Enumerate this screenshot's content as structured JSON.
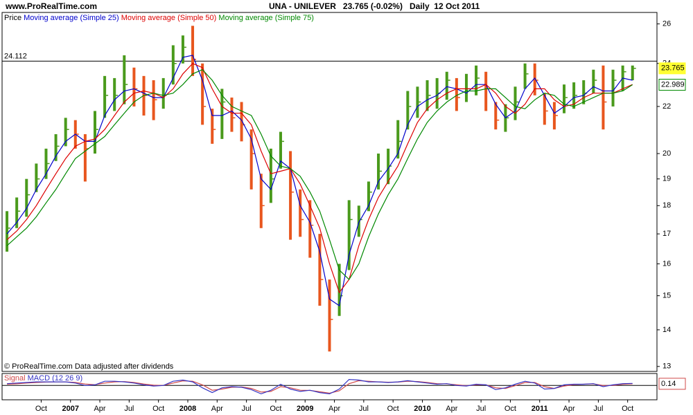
{
  "header": {
    "site": "www.ProRealTime.com",
    "title": "UNA - UNILEVER   23.765 (-0.02%)   Daily  12 Oct 2011"
  },
  "chart_data": [
    {
      "type": "hilo",
      "log": true,
      "ylim": [
        12.87,
        26.61
      ],
      "yticks": [
        13,
        14,
        15,
        16,
        17,
        18,
        19,
        20,
        22,
        24,
        26
      ],
      "hline": 24.112,
      "footnote": "© ProRealTime.com  Data adjusted after dividends",
      "categories": [
        null,
        null,
        null,
        null,
        "Oct",
        null,
        null,
        "2007",
        null,
        null,
        "Apr",
        null,
        null,
        "Jul",
        null,
        null,
        "Oct",
        null,
        null,
        "2008",
        null,
        null,
        "Apr",
        null,
        null,
        "Jul",
        null,
        null,
        "Oct",
        null,
        null,
        "2009",
        null,
        null,
        "Apr",
        null,
        null,
        "Jul",
        null,
        null,
        "Oct",
        null,
        null,
        "2010",
        null,
        null,
        "Apr",
        null,
        null,
        "Jul",
        null,
        null,
        "Oct",
        null,
        null,
        "2011",
        null,
        null,
        "Apr",
        null,
        null,
        "Jul",
        null,
        null,
        "Oct",
        null,
        null
      ],
      "series": [
        {
          "name": "Price",
          "color": "#4a9a1c",
          "down_color": "#e8561e",
          "box_color": "#ffff33",
          "box_filled": true,
          "values": [
            17.2,
            17.8,
            18.4,
            19.0,
            19.6,
            20.3,
            21.0,
            20.8,
            20.2,
            21.0,
            22.5,
            22.5,
            23.0,
            22.8,
            22.5,
            22.3,
            22.5,
            24.0,
            24.8,
            24.2,
            22.0,
            21.0,
            22.2,
            21.5,
            21.2,
            20.0,
            18.0,
            19.0,
            20.5,
            18.5,
            17.5,
            17.3,
            15.5,
            14.3,
            15.0,
            17.5,
            17.5,
            18.5,
            19.3,
            19.5,
            20.5,
            22.0,
            22.2,
            22.5,
            22.6,
            23.2,
            22.4,
            22.8,
            23.3,
            22.8,
            21.4,
            21.5,
            22.2,
            23.5,
            23.2,
            21.8,
            21.6,
            22.4,
            22.5,
            22.6,
            23.2,
            22.2,
            23.2,
            23.6,
            23.765,
            null,
            null
          ],
          "high": [
            17.8,
            18.3,
            19.0,
            19.6,
            20.2,
            20.8,
            21.5,
            21.4,
            20.8,
            21.8,
            23.4,
            23.3,
            24.4,
            23.8,
            23.4,
            23.2,
            23.3,
            24.9,
            25.4,
            25.9,
            24.0,
            21.9,
            22.8,
            22.4,
            22.2,
            21.0,
            19.2,
            20.2,
            20.9,
            20.1,
            18.6,
            18.2,
            17.0,
            15.5,
            16.0,
            18.2,
            18.0,
            18.9,
            20.0,
            20.2,
            21.4,
            22.7,
            22.9,
            23.2,
            23.3,
            23.6,
            23.3,
            23.5,
            23.9,
            23.6,
            22.2,
            22.1,
            22.9,
            24.0,
            24.0,
            22.6,
            22.2,
            23.0,
            23.1,
            23.2,
            23.7,
            23.9,
            23.7,
            23.9,
            23.9,
            null,
            null
          ],
          "low": [
            16.4,
            17.2,
            17.6,
            18.5,
            19.0,
            19.7,
            20.3,
            20.2,
            18.9,
            20.0,
            21.5,
            21.8,
            22.1,
            22.0,
            21.6,
            21.4,
            21.9,
            23.0,
            24.0,
            23.4,
            21.2,
            20.4,
            20.6,
            20.9,
            20.5,
            18.6,
            17.2,
            18.1,
            19.4,
            16.8,
            16.9,
            16.2,
            14.7,
            13.4,
            14.4,
            15.8,
            16.9,
            17.8,
            18.6,
            18.8,
            19.8,
            21.0,
            21.5,
            21.8,
            21.9,
            22.3,
            21.8,
            22.2,
            22.5,
            21.8,
            21.0,
            20.9,
            21.4,
            22.8,
            22.5,
            21.2,
            21.0,
            21.7,
            21.9,
            22.1,
            22.6,
            21.0,
            22.0,
            22.7,
            23.2,
            null,
            null
          ]
        },
        {
          "name": "Moving average (Simple 25)",
          "color": "#0000cc",
          "values": [
            17.0,
            17.4,
            17.9,
            18.6,
            19.2,
            19.9,
            20.5,
            20.8,
            20.5,
            20.5,
            21.6,
            22.3,
            22.7,
            22.8,
            22.6,
            22.4,
            22.4,
            23.3,
            24.3,
            24.4,
            23.2,
            21.6,
            21.6,
            21.8,
            21.4,
            20.6,
            19.0,
            18.6,
            19.7,
            19.4,
            18.0,
            17.4,
            16.4,
            14.9,
            14.7,
            16.3,
            17.4,
            18.0,
            18.9,
            19.4,
            20.0,
            21.2,
            22.0,
            22.3,
            22.5,
            22.9,
            22.8,
            22.6,
            23.0,
            23.0,
            22.1,
            21.5,
            21.8,
            22.8,
            23.3,
            22.5,
            21.7,
            22.0,
            22.4,
            22.5,
            22.9,
            22.7,
            22.7,
            23.3,
            23.2,
            null,
            null
          ]
        },
        {
          "name": "Moving average (Simple 50)",
          "color": "#dd0000",
          "values": [
            16.8,
            17.1,
            17.5,
            18.0,
            18.6,
            19.2,
            19.8,
            20.3,
            20.5,
            20.6,
            21.0,
            21.6,
            22.2,
            22.6,
            22.7,
            22.6,
            22.4,
            22.8,
            23.5,
            24.0,
            23.8,
            22.8,
            22.0,
            21.7,
            21.7,
            21.2,
            20.1,
            19.2,
            19.3,
            19.4,
            18.8,
            18.0,
            17.2,
            16.0,
            15.1,
            15.5,
            16.6,
            17.5,
            18.3,
            18.9,
            19.5,
            20.4,
            21.3,
            21.9,
            22.3,
            22.6,
            22.8,
            22.8,
            22.8,
            23.0,
            22.6,
            22.0,
            21.7,
            22.1,
            22.8,
            22.8,
            22.3,
            22.0,
            22.1,
            22.4,
            22.6,
            22.6,
            22.6,
            22.8,
            23.0,
            null,
            null
          ]
        },
        {
          "name": "Moving average (Simple 75)",
          "color": "#008800",
          "box_color": "#008800",
          "box_filled": false,
          "values": [
            16.6,
            16.9,
            17.2,
            17.6,
            18.1,
            18.6,
            19.2,
            19.8,
            20.1,
            20.4,
            20.7,
            21.2,
            21.7,
            22.2,
            22.5,
            22.6,
            22.5,
            22.6,
            23.0,
            23.5,
            23.7,
            23.2,
            22.5,
            22.0,
            21.8,
            21.6,
            20.8,
            19.9,
            19.5,
            19.4,
            19.1,
            18.5,
            17.8,
            16.8,
            15.8,
            15.5,
            16.0,
            16.9,
            17.7,
            18.4,
            19.0,
            19.8,
            20.6,
            21.3,
            21.8,
            22.2,
            22.5,
            22.7,
            22.7,
            22.8,
            22.8,
            22.4,
            22.0,
            21.9,
            22.3,
            22.6,
            22.5,
            22.1,
            22.0,
            22.2,
            22.4,
            22.6,
            22.6,
            22.7,
            22.989,
            null,
            null
          ]
        }
      ]
    },
    {
      "type": "line",
      "ylim": [
        -1.2,
        1.0
      ],
      "series": [
        {
          "name": "Signal",
          "color": "#d04848",
          "box_color": "#d04848",
          "box_filled": false,
          "values": [
            0.1,
            0.14,
            0.2,
            0.25,
            0.28,
            0.3,
            0.3,
            0.25,
            0.12,
            0.06,
            0.2,
            0.3,
            0.32,
            0.25,
            0.12,
            0.02,
            0.0,
            0.2,
            0.38,
            0.35,
            0.05,
            -0.4,
            -0.3,
            -0.15,
            -0.13,
            -0.25,
            -0.55,
            -0.5,
            -0.1,
            -0.2,
            -0.4,
            -0.42,
            -0.52,
            -0.65,
            -0.45,
            0.15,
            0.4,
            0.35,
            0.3,
            0.27,
            0.28,
            0.35,
            0.33,
            0.25,
            0.15,
            0.13,
            0.05,
            -0.02,
            0.05,
            0.05,
            -0.2,
            -0.25,
            -0.02,
            0.25,
            0.25,
            -0.1,
            -0.25,
            -0.05,
            0.07,
            0.1,
            0.13,
            0.0,
            0.0,
            0.1,
            0.14,
            null,
            null
          ]
        },
        {
          "name": "MACD (12 26 9)",
          "color": "#3434c4",
          "values": [
            0.15,
            0.2,
            0.25,
            0.3,
            0.3,
            0.3,
            0.3,
            0.2,
            0.0,
            0.05,
            0.35,
            0.35,
            0.3,
            0.2,
            0.05,
            -0.05,
            0.0,
            0.35,
            0.45,
            0.3,
            -0.2,
            -0.6,
            -0.2,
            -0.1,
            -0.15,
            -0.35,
            -0.7,
            -0.4,
            0.1,
            -0.3,
            -0.5,
            -0.4,
            -0.6,
            -0.7,
            -0.3,
            0.5,
            0.45,
            0.3,
            0.3,
            0.25,
            0.3,
            0.4,
            0.3,
            0.2,
            0.1,
            0.15,
            0.0,
            -0.05,
            0.1,
            0.05,
            -0.35,
            -0.2,
            0.1,
            0.35,
            0.2,
            -0.3,
            -0.25,
            0.05,
            0.1,
            0.1,
            0.15,
            -0.1,
            0.05,
            0.15,
            0.1722,
            null,
            null
          ]
        }
      ]
    }
  ]
}
